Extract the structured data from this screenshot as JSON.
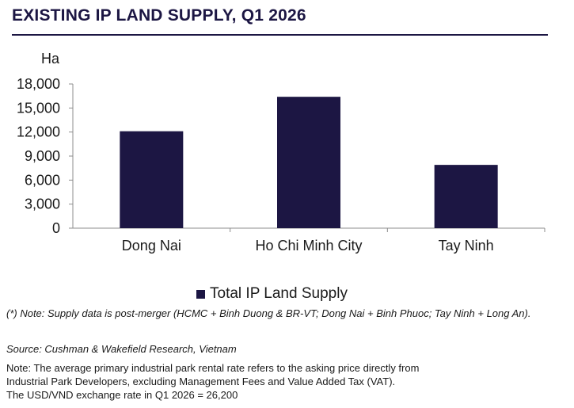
{
  "title": "EXISTING IP LAND SUPPLY, Q1 2026",
  "chart_data": {
    "type": "bar",
    "title": "EXISTING IP LAND SUPPLY, Q1 2026",
    "ylabel": "Ha",
    "categories": [
      "Dong Nai",
      "Ho Chi Minh City",
      "Tay Ninh"
    ],
    "series": [
      {
        "name": "Total IP Land Supply",
        "values": [
          12100,
          16400,
          7900
        ],
        "color": "#1c1643"
      }
    ],
    "yticks": [
      "0",
      "3,000",
      "6,000",
      "9,000",
      "12,000",
      "15,000",
      "18,000"
    ],
    "ylim": [
      0,
      18000
    ],
    "grid": false,
    "legend_position": "bottom"
  },
  "notes": {
    "merger_note": "(*) Note: Supply data is post-merger (HCMC + Binh Duong & BR-VT; Dong Nai + Binh Phuoc; Tay Ninh + Long An).",
    "source": "Source: Cushman & Wakefield Research, Vietnam",
    "rental_note_1": "Note: The average primary industrial park rental rate refers to the asking price directly from",
    "rental_note_2": "Industrial Park Developers, excluding Management Fees and Value Added Tax (VAT).",
    "rental_note_3": "The USD/VND exchange rate in Q1 2026 = 26,200"
  }
}
